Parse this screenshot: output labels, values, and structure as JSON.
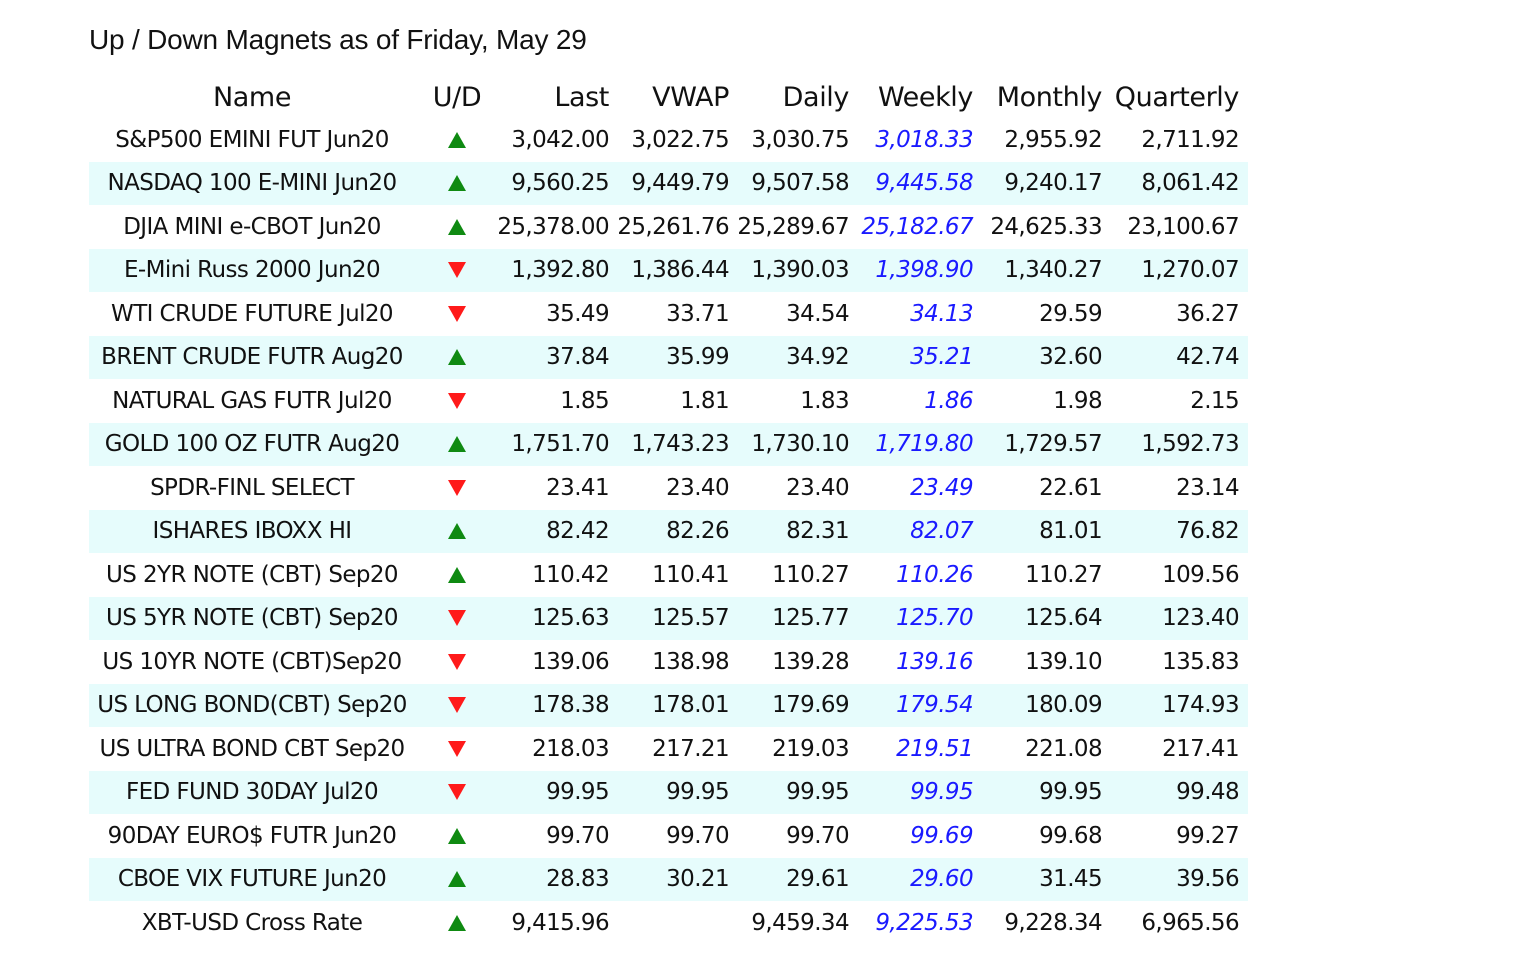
{
  "title": "Up / Down Magnets as of Friday, May 29",
  "columns": {
    "name": "Name",
    "ud": "U/D",
    "last": "Last",
    "vwap": "VWAP",
    "daily": "Daily",
    "weekly": "Weekly",
    "monthly": "Monthly",
    "quarterly": "Quarterly"
  },
  "colors": {
    "up": "#0f8a12",
    "down": "#ff1a1a",
    "weekly_text": "#1a1aff",
    "alt_row_bg": "#e6fcfc"
  },
  "rows": [
    {
      "name": "S&P500 EMINI FUT Jun20",
      "direction": "up",
      "last": "3,042.00",
      "vwap": "3,022.75",
      "daily": "3,030.75",
      "weekly": "3,018.33",
      "monthly": "2,955.92",
      "quarterly": "2,711.92"
    },
    {
      "name": "NASDAQ 100 E-MINI Jun20",
      "direction": "up",
      "last": "9,560.25",
      "vwap": "9,449.79",
      "daily": "9,507.58",
      "weekly": "9,445.58",
      "monthly": "9,240.17",
      "quarterly": "8,061.42"
    },
    {
      "name": "DJIA MINI e-CBOT Jun20",
      "direction": "up",
      "last": "25,378.00",
      "vwap": "25,261.76",
      "daily": "25,289.67",
      "weekly": "25,182.67",
      "monthly": "24,625.33",
      "quarterly": "23,100.67"
    },
    {
      "name": "E-Mini Russ 2000 Jun20",
      "direction": "down",
      "last": "1,392.80",
      "vwap": "1,386.44",
      "daily": "1,390.03",
      "weekly": "1,398.90",
      "monthly": "1,340.27",
      "quarterly": "1,270.07"
    },
    {
      "name": "WTI CRUDE FUTURE Jul20",
      "direction": "down",
      "last": "35.49",
      "vwap": "33.71",
      "daily": "34.54",
      "weekly": "34.13",
      "monthly": "29.59",
      "quarterly": "36.27"
    },
    {
      "name": "BRENT CRUDE FUTR Aug20",
      "direction": "up",
      "last": "37.84",
      "vwap": "35.99",
      "daily": "34.92",
      "weekly": "35.21",
      "monthly": "32.60",
      "quarterly": "42.74"
    },
    {
      "name": "NATURAL GAS FUTR Jul20",
      "direction": "down",
      "last": "1.85",
      "vwap": "1.81",
      "daily": "1.83",
      "weekly": "1.86",
      "monthly": "1.98",
      "quarterly": "2.15"
    },
    {
      "name": "GOLD 100 OZ FUTR Aug20",
      "direction": "up",
      "last": "1,751.70",
      "vwap": "1,743.23",
      "daily": "1,730.10",
      "weekly": "1,719.80",
      "monthly": "1,729.57",
      "quarterly": "1,592.73"
    },
    {
      "name": "SPDR-FINL SELECT",
      "direction": "down",
      "last": "23.41",
      "vwap": "23.40",
      "daily": "23.40",
      "weekly": "23.49",
      "monthly": "22.61",
      "quarterly": "23.14"
    },
    {
      "name": "ISHARES IBOXX HI",
      "direction": "up",
      "last": "82.42",
      "vwap": "82.26",
      "daily": "82.31",
      "weekly": "82.07",
      "monthly": "81.01",
      "quarterly": "76.82"
    },
    {
      "name": "US 2YR NOTE (CBT) Sep20",
      "direction": "up",
      "last": "110.42",
      "vwap": "110.41",
      "daily": "110.27",
      "weekly": "110.26",
      "monthly": "110.27",
      "quarterly": "109.56"
    },
    {
      "name": "US 5YR NOTE (CBT) Sep20",
      "direction": "down",
      "last": "125.63",
      "vwap": "125.57",
      "daily": "125.77",
      "weekly": "125.70",
      "monthly": "125.64",
      "quarterly": "123.40"
    },
    {
      "name": "US 10YR NOTE (CBT)Sep20",
      "direction": "down",
      "last": "139.06",
      "vwap": "138.98",
      "daily": "139.28",
      "weekly": "139.16",
      "monthly": "139.10",
      "quarterly": "135.83"
    },
    {
      "name": "US LONG BOND(CBT) Sep20",
      "direction": "down",
      "last": "178.38",
      "vwap": "178.01",
      "daily": "179.69",
      "weekly": "179.54",
      "monthly": "180.09",
      "quarterly": "174.93"
    },
    {
      "name": "US ULTRA BOND CBT Sep20",
      "direction": "down",
      "last": "218.03",
      "vwap": "217.21",
      "daily": "219.03",
      "weekly": "219.51",
      "monthly": "221.08",
      "quarterly": "217.41"
    },
    {
      "name": "FED FUND 30DAY Jul20",
      "direction": "down",
      "last": "99.95",
      "vwap": "99.95",
      "daily": "99.95",
      "weekly": "99.95",
      "monthly": "99.95",
      "quarterly": "99.48"
    },
    {
      "name": "90DAY EURO$ FUTR Jun20",
      "direction": "up",
      "last": "99.70",
      "vwap": "99.70",
      "daily": "99.70",
      "weekly": "99.69",
      "monthly": "99.68",
      "quarterly": "99.27"
    },
    {
      "name": "CBOE VIX FUTURE Jun20",
      "direction": "up",
      "last": "28.83",
      "vwap": "30.21",
      "daily": "29.61",
      "weekly": "29.60",
      "monthly": "31.45",
      "quarterly": "39.56"
    },
    {
      "name": "XBT-USD Cross Rate",
      "direction": "up",
      "last": "9,415.96",
      "vwap": "",
      "daily": "9,459.34",
      "weekly": "9,225.53",
      "monthly": "9,228.34",
      "quarterly": "6,965.56"
    }
  ]
}
